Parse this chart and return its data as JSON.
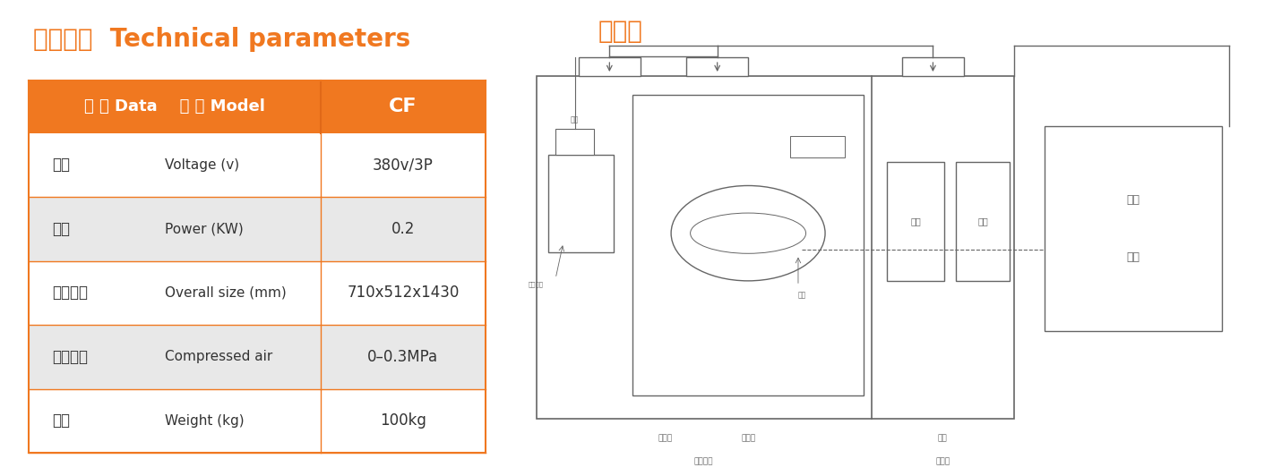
{
  "title_left": "技术参数  Technical parameters",
  "title_right": "原理图",
  "title_color": "#F07820",
  "header_bg": "#F07820",
  "header_text_color": "#FFFFFF",
  "header_col1": "参 数 Data    型 号 Model",
  "header_col2": "CF",
  "rows": [
    {
      "zh": "电压",
      "en": "Voltage (v)",
      "val": "380v/3P",
      "shaded": false
    },
    {
      "zh": "功率",
      "en": "Power (KW)",
      "val": "0.2",
      "shaded": true
    },
    {
      "zh": "外形尺寸",
      "en": "Overall size (mm)",
      "val": "710x512x1430",
      "shaded": false
    },
    {
      "zh": "压缩空气",
      "en": "Compressed air",
      "val": "0–0.3MPa",
      "shaded": true
    },
    {
      "zh": "重量",
      "en": "Weight (kg)",
      "val": "100kg",
      "shaded": false
    }
  ],
  "row_bg_shaded": "#E8E8E8",
  "row_bg_normal": "#FFFFFF",
  "border_color": "#F07820",
  "text_color_dark": "#333333",
  "bg_color": "#FFFFFF",
  "lc": "#666666",
  "font_size_title": 20,
  "font_size_header": 13,
  "font_size_row_zh": 12,
  "font_size_row_en": 11,
  "font_size_val": 12,
  "diag_labels": {
    "blower": "吹粉机",
    "press": "压片机",
    "aux": "辅机",
    "zone1": "压片单间",
    "zone2": "辅机间",
    "ac_line1": "除湿",
    "ac_line2": "空调",
    "remove_fe": "除镁",
    "remove_dust": "除粉",
    "hopper": "料筒",
    "pipe": "大压星管",
    "nozzle": "喷嘴"
  }
}
